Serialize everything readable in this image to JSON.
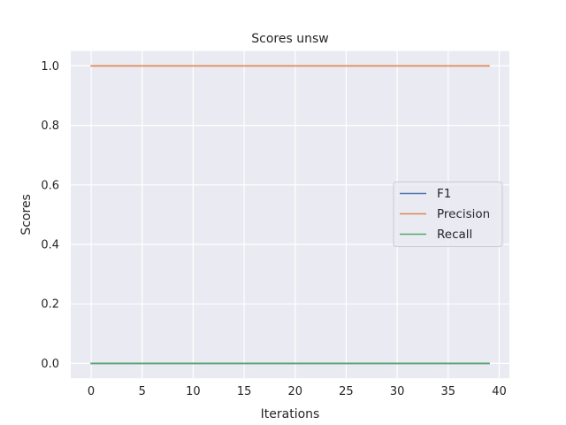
{
  "chart_data": {
    "type": "line",
    "title": "Scores unsw",
    "xlabel": "Iterations",
    "ylabel": "Scores",
    "xlim": [
      -2,
      41
    ],
    "ylim": [
      -0.05,
      1.05
    ],
    "xticks": [
      0,
      5,
      10,
      15,
      20,
      25,
      30,
      35,
      40
    ],
    "yticks": [
      0.0,
      0.2,
      0.4,
      0.6,
      0.8,
      1.0
    ],
    "xtick_labels": [
      "0",
      "5",
      "10",
      "15",
      "20",
      "25",
      "30",
      "35",
      "40"
    ],
    "ytick_labels": [
      "0.0",
      "0.2",
      "0.4",
      "0.6",
      "0.8",
      "1.0"
    ],
    "grid": true,
    "legend_position": "center-right",
    "x_range": [
      0,
      39
    ],
    "series": [
      {
        "name": "F1",
        "color": "#4c72b0",
        "value": 0.0
      },
      {
        "name": "Precision",
        "color": "#dd8452",
        "value": 1.0
      },
      {
        "name": "Recall",
        "color": "#55a868",
        "value": 0.0
      }
    ]
  }
}
